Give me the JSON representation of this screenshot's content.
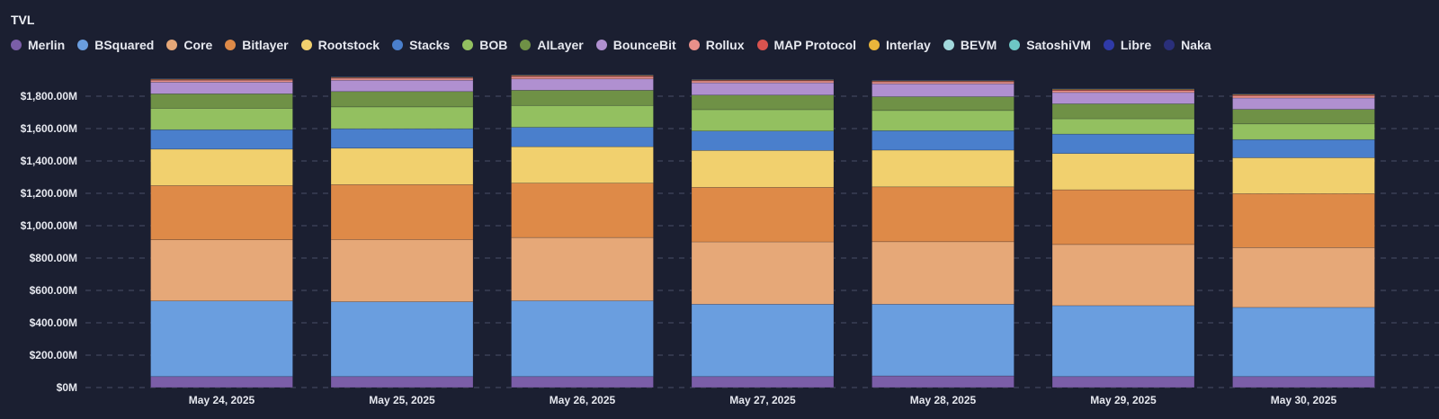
{
  "chart_data": {
    "type": "bar",
    "stacked": true,
    "title": "TVL",
    "categories": [
      "May 24, 2025",
      "May 25, 2025",
      "May 26, 2025",
      "May 27, 2025",
      "May 28, 2025",
      "May 29, 2025",
      "May 30, 2025"
    ],
    "ylim": [
      0,
      1900
    ],
    "yunit": "M",
    "yticks": [
      "$0M",
      "$200.00M",
      "$400.00M",
      "$600.00M",
      "$800.00M",
      "$1,000.00M",
      "$1,200.00M",
      "$1,400.00M",
      "$1,600.00M",
      "$1,800.00M"
    ],
    "ytick_values": [
      0,
      200,
      400,
      600,
      800,
      1000,
      1200,
      1400,
      1600,
      1800
    ],
    "grid": true,
    "legend_position": "top-left",
    "series": [
      {
        "name": "Merlin",
        "color": "#7b5ea8",
        "values": [
          68,
          68,
          68,
          68,
          72,
          68,
          68
        ]
      },
      {
        "name": "BSquared",
        "color": "#6a9edf",
        "values": [
          467,
          462,
          468,
          447,
          443,
          438,
          427
        ]
      },
      {
        "name": "Core",
        "color": "#e6a878",
        "values": [
          378,
          384,
          391,
          385,
          386,
          378,
          370
        ]
      },
      {
        "name": "Bitlayer",
        "color": "#de8a48",
        "values": [
          335,
          340,
          336,
          337,
          339,
          338,
          333
        ]
      },
      {
        "name": "Rootstock",
        "color": "#f1d06e",
        "values": [
          225,
          225,
          225,
          228,
          227,
          224,
          222
        ]
      },
      {
        "name": "Stacks",
        "color": "#4a7fcc",
        "values": [
          120,
          120,
          120,
          120,
          120,
          120,
          112
        ]
      },
      {
        "name": "BOB",
        "color": "#93c060",
        "values": [
          132,
          135,
          135,
          132,
          125,
          95,
          97
        ]
      },
      {
        "name": "AILayer",
        "color": "#6f9146",
        "values": [
          90,
          95,
          94,
          90,
          85,
          92,
          90
        ]
      },
      {
        "name": "BounceBit",
        "color": "#b090d0",
        "values": [
          72,
          70,
          70,
          76,
          80,
          70,
          70
        ]
      },
      {
        "name": "Rollux",
        "color": "#e8908a",
        "values": [
          12,
          12,
          14,
          12,
          12,
          12,
          14
        ]
      },
      {
        "name": "MAP Protocol",
        "color": "#d9534f",
        "values": [
          4,
          4,
          5,
          4,
          4,
          5,
          5
        ]
      },
      {
        "name": "Interlay",
        "color": "#e9b53b",
        "values": [
          3,
          3,
          4,
          3,
          3,
          4,
          4
        ]
      },
      {
        "name": "BEVM",
        "color": "#a2d8dc",
        "values": [
          2,
          2,
          2,
          2,
          2,
          2,
          2
        ]
      },
      {
        "name": "SatoshiVM",
        "color": "#6ec7c5",
        "values": [
          1,
          1,
          1,
          1,
          1,
          1,
          1
        ]
      },
      {
        "name": "Libre",
        "color": "#2f3aa8",
        "values": [
          1,
          1,
          1,
          1,
          1,
          1,
          1
        ]
      },
      {
        "name": "Naka",
        "color": "#2a2f7a",
        "values": [
          1,
          1,
          1,
          1,
          1,
          1,
          1
        ]
      }
    ]
  }
}
